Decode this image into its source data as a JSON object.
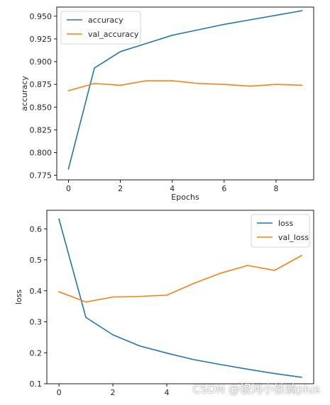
{
  "colors": {
    "series1": "#1f77b4",
    "series2": "#ff7f0e"
  },
  "watermark": "CSDN @银河小铁骑plus",
  "chart_data": [
    {
      "type": "line",
      "xlabel": "Epochs",
      "ylabel": "accuracy",
      "xlim": [
        -0.45,
        9.45
      ],
      "ylim": [
        0.77,
        0.96
      ],
      "xticks": [
        0,
        2,
        4,
        6,
        8
      ],
      "yticks": [
        0.775,
        0.8,
        0.825,
        0.85,
        0.875,
        0.9,
        0.925,
        0.95
      ],
      "legend": "top-left",
      "grid": false,
      "x": [
        0,
        1,
        2,
        3,
        4,
        5,
        6,
        7,
        8,
        9
      ],
      "series": [
        {
          "name": "accuracy",
          "values": [
            0.782,
            0.893,
            0.911,
            0.92,
            0.929,
            0.935,
            0.941,
            0.946,
            0.951,
            0.956
          ]
        },
        {
          "name": "val_accuracy",
          "values": [
            0.868,
            0.876,
            0.874,
            0.879,
            0.879,
            0.876,
            0.875,
            0.873,
            0.875,
            0.874
          ]
        }
      ]
    },
    {
      "type": "line",
      "xlabel": "",
      "ylabel": "loss",
      "xlim": [
        -0.45,
        9.45
      ],
      "ylim": [
        0.1,
        0.66
      ],
      "xticks": [
        0,
        2,
        4
      ],
      "yticks": [
        0.1,
        0.2,
        0.3,
        0.4,
        0.5,
        0.6
      ],
      "legend": "top-right",
      "grid": false,
      "x": [
        0,
        1,
        2,
        3,
        4,
        5,
        6,
        7,
        8,
        9
      ],
      "series": [
        {
          "name": "loss",
          "values": [
            0.632,
            0.314,
            0.258,
            0.222,
            0.199,
            0.178,
            0.162,
            0.147,
            0.133,
            0.121
          ]
        },
        {
          "name": "val_loss",
          "values": [
            0.397,
            0.364,
            0.38,
            0.382,
            0.386,
            0.424,
            0.457,
            0.482,
            0.466,
            0.514
          ]
        }
      ]
    }
  ]
}
